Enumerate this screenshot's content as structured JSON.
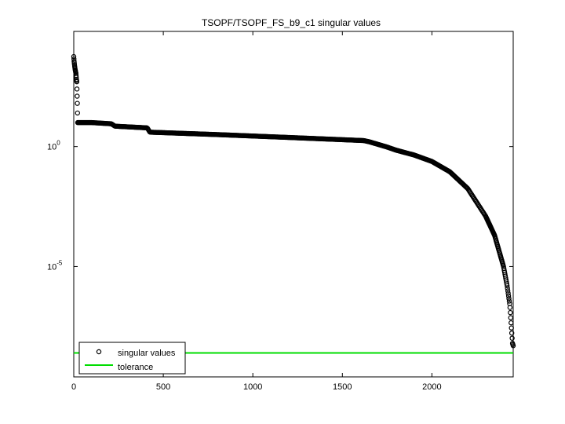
{
  "chart_data": {
    "type": "scatter",
    "title": "TSOPF/TSOPF_FS_b9_c1 singular values",
    "xlabel": "",
    "ylabel": "",
    "xlim": [
      0,
      2454
    ],
    "ylim_log10": [
      -9.6,
      4.8
    ],
    "y_scale": "log",
    "x_ticks": [
      0,
      500,
      1000,
      1500,
      2000
    ],
    "x_tick_labels": [
      "0",
      "500",
      "1000",
      "1500",
      "2000"
    ],
    "y_ticks_log10": [
      0,
      -5
    ],
    "y_tick_labels": [
      {
        "base": "10",
        "exp": "0"
      },
      {
        "base": "10",
        "exp": "-5"
      }
    ],
    "grid": false,
    "legend_position": "bottom-left",
    "colors": {
      "singular_values": "#000000",
      "tolerance": "#00dd00"
    },
    "series": [
      {
        "name": "singular values",
        "marker": "open-circle",
        "curve_log10": [
          [
            0,
            3.75
          ],
          [
            2,
            3.55
          ],
          [
            5,
            3.35
          ],
          [
            8,
            3.2
          ],
          [
            12,
            3.05
          ],
          [
            15,
            2.8
          ],
          [
            17,
            2.7
          ],
          [
            20,
            1.8
          ],
          [
            22,
            1.0
          ],
          [
            100,
            1.0
          ],
          [
            210,
            0.95
          ],
          [
            230,
            0.85
          ],
          [
            410,
            0.78
          ],
          [
            425,
            0.6
          ],
          [
            800,
            0.5
          ],
          [
            1200,
            0.38
          ],
          [
            1620,
            0.25
          ],
          [
            1650,
            0.2
          ],
          [
            1750,
            -0.02
          ],
          [
            1800,
            -0.15
          ],
          [
            1900,
            -0.35
          ],
          [
            2000,
            -0.62
          ],
          [
            2100,
            -1.05
          ],
          [
            2200,
            -1.75
          ],
          [
            2300,
            -2.9
          ],
          [
            2350,
            -3.7
          ],
          [
            2400,
            -5.0
          ],
          [
            2420,
            -5.8
          ],
          [
            2435,
            -6.6
          ],
          [
            2450,
            -8.2
          ],
          [
            2454,
            -8.3
          ]
        ]
      },
      {
        "name": "tolerance",
        "marker": "line",
        "y_log10": -8.6
      }
    ]
  }
}
